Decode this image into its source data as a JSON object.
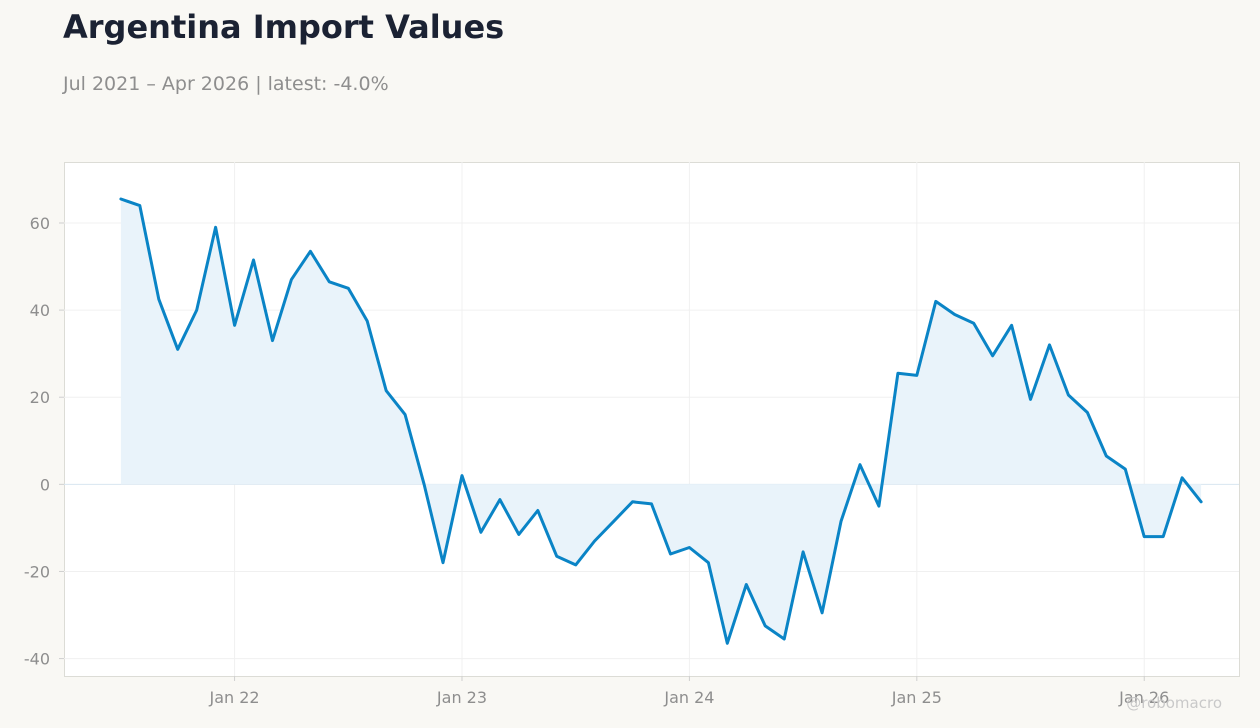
{
  "header": {
    "title": "Argentina Import Values",
    "subtitle": "Jul 2021 – Apr 2026 | latest: -4.0%"
  },
  "watermark": "@robomacro",
  "chart_data": {
    "type": "area",
    "title": "Argentina Import Values",
    "subtitle": "Jul 2021 – Apr 2026 | latest: -4.0%",
    "xlabel": "",
    "ylabel": "",
    "ylim": [
      -44,
      74
    ],
    "yticks": [
      -40,
      -20,
      0,
      20,
      40,
      60
    ],
    "xticks": [
      {
        "label": "Jan 22",
        "x": "2022-01"
      },
      {
        "label": "Jan 23",
        "x": "2023-01"
      },
      {
        "label": "Jan 24",
        "x": "2024-01"
      },
      {
        "label": "Jan 25",
        "x": "2025-01"
      },
      {
        "label": "Jan 26",
        "x": "2026-01"
      }
    ],
    "xlim": [
      "2021-04",
      "2026-06"
    ],
    "grid": true,
    "colors": {
      "line": "#0a84c6",
      "fill": "#e9f3fa",
      "zero_line": "#d8e6f0",
      "grid": "#f0f0f0",
      "frame": "#dcdcd6"
    },
    "series": [
      {
        "x": [
          "2021-07",
          "2021-08",
          "2021-09",
          "2021-10",
          "2021-11",
          "2021-12",
          "2022-01",
          "2022-02",
          "2022-03",
          "2022-04",
          "2022-05",
          "2022-06",
          "2022-07",
          "2022-08",
          "2022-09",
          "2022-10",
          "2022-11",
          "2022-12",
          "2023-01",
          "2023-02",
          "2023-03",
          "2023-04",
          "2023-05",
          "2023-06",
          "2023-07",
          "2023-08",
          "2023-09",
          "2023-10",
          "2023-11",
          "2023-12",
          "2024-01",
          "2024-02",
          "2024-03",
          "2024-04",
          "2024-05",
          "2024-06",
          "2024-07",
          "2024-08",
          "2024-09",
          "2024-10",
          "2024-11",
          "2024-12",
          "2025-01",
          "2025-02",
          "2025-03",
          "2025-04",
          "2025-05",
          "2025-06",
          "2025-07",
          "2025-08",
          "2025-09",
          "2025-10",
          "2025-11",
          "2025-12",
          "2026-01",
          "2026-02",
          "2026-03",
          "2026-04"
        ],
        "values": [
          65.5,
          64,
          42.5,
          31,
          40,
          59,
          36.5,
          51.5,
          33,
          47,
          53.5,
          46.5,
          45,
          37.5,
          21.5,
          16,
          0,
          -18,
          2,
          -11,
          -3.5,
          -11.5,
          -6,
          -16.5,
          -18.5,
          -13,
          -8.5,
          -4,
          -4.5,
          -16,
          -14.5,
          -18,
          -36.5,
          -23,
          -32.5,
          -35.5,
          -15.5,
          -29.5,
          -8.5,
          4.5,
          -5,
          25.5,
          25,
          42,
          39,
          37,
          29.5,
          36.5,
          19.5,
          32,
          20.5,
          16.5,
          6.5,
          3.5,
          -12,
          -12,
          1.5,
          -4
        ]
      }
    ]
  }
}
